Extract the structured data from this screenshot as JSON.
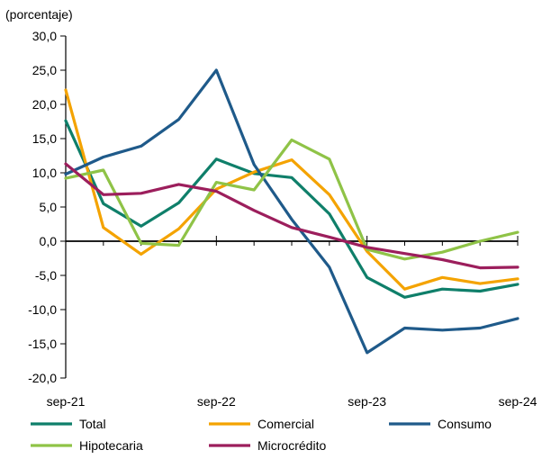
{
  "chart_data": {
    "type": "line",
    "unit_label": "(porcentaje)",
    "ylim": [
      -20,
      30
    ],
    "ytick_values": [
      -20,
      -15,
      -10,
      -5,
      0,
      5,
      10,
      15,
      20,
      25,
      30
    ],
    "ytick_labels": [
      "-20,0",
      "-15,0",
      "-10,0",
      "-5,0",
      "0,0",
      "5,0",
      "10,0",
      "15,0",
      "20,0",
      "25,0",
      "30,0"
    ],
    "xtick_labels": [
      "sep-21",
      "sep-22",
      "sep-23",
      "sep-24"
    ],
    "x": [
      "sep-21",
      "dic-21",
      "mar-22",
      "jun-22",
      "sep-22",
      "dic-22",
      "mar-23",
      "jun-23",
      "sep-23",
      "dic-23",
      "mar-24",
      "jun-24",
      "sep-24"
    ],
    "grid": false,
    "legend_position": "bottom",
    "series": [
      {
        "name": "Total",
        "color": "#0f7f6a",
        "values": [
          17.6,
          5.5,
          2.2,
          5.6,
          12.0,
          9.9,
          9.3,
          4.0,
          -5.3,
          -8.2,
          -7.0,
          -7.3,
          -6.3
        ]
      },
      {
        "name": "Comercial",
        "color": "#f4a300",
        "values": [
          22.1,
          2.0,
          -1.9,
          1.8,
          7.6,
          10.1,
          11.9,
          6.8,
          -1.5,
          -7.0,
          -5.3,
          -6.2,
          -5.5
        ]
      },
      {
        "name": "Consumo",
        "color": "#1f5a8a",
        "values": [
          9.8,
          12.3,
          13.9,
          17.8,
          25.0,
          11.2,
          3.2,
          -3.8,
          -16.3,
          -12.7,
          -13.0,
          -12.7,
          -11.3
        ]
      },
      {
        "name": "Hipotecaria",
        "color": "#8fc347",
        "values": [
          9.2,
          10.4,
          -0.3,
          -0.6,
          8.6,
          7.5,
          14.8,
          12.0,
          -1.2,
          -2.6,
          -1.6,
          0.0,
          1.3
        ]
      },
      {
        "name": "Microcrédito",
        "color": "#9c1e5c",
        "values": [
          11.3,
          6.8,
          7.0,
          8.3,
          7.3,
          4.5,
          2.0,
          0.6,
          -0.9,
          -1.8,
          -2.7,
          -3.9,
          -3.8
        ]
      }
    ]
  }
}
